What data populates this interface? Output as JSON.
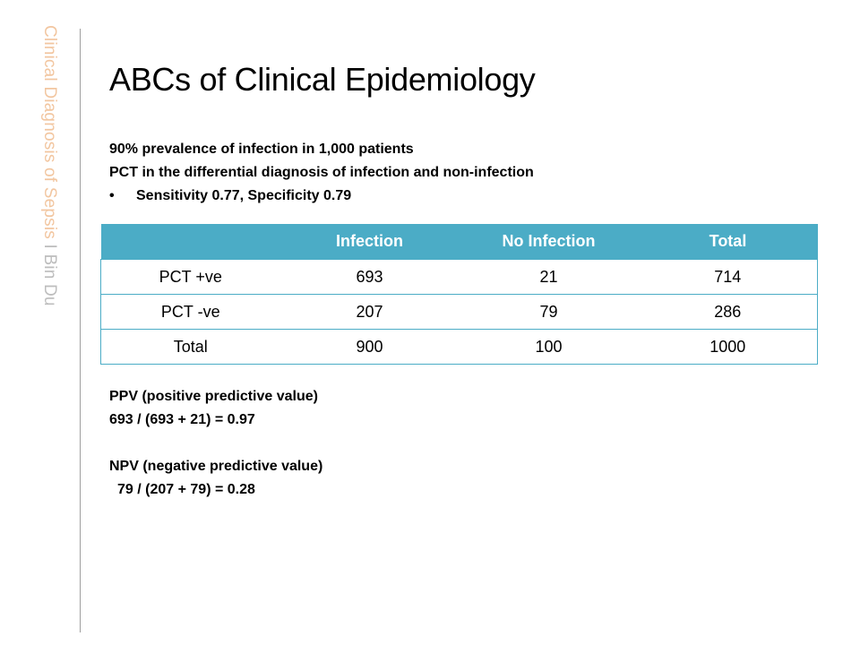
{
  "sidebar": {
    "title": "Clinical Diagnosis of Sepsis",
    "separator": "I",
    "author": "Bin Du"
  },
  "slide": {
    "title": "ABCs of Clinical Epidemiology",
    "intro": {
      "line1": "90% prevalence of infection in 1,000 patients",
      "line2": "PCT in the differential diagnosis of infection and non-infection",
      "bullet_symbol": "•",
      "bullet": "Sensitivity 0.77, Specificity 0.79"
    },
    "table": {
      "headers": [
        "",
        "Infection",
        "No Infection",
        "Total"
      ],
      "rows": [
        [
          "PCT +ve",
          "693",
          "21",
          "714"
        ],
        [
          "PCT -ve",
          "207",
          "79",
          "286"
        ],
        [
          "Total",
          "900",
          "100",
          "1000"
        ]
      ]
    },
    "ppv": {
      "label": "PPV (positive predictive value)",
      "formula": "693 / (693 + 21) = 0.97"
    },
    "npv": {
      "label": "NPV (negative predictive value)",
      "formula": "79 / (207 + 79) = 0.28"
    }
  },
  "colors": {
    "table_header": "#4bacc6",
    "sidebar_title": "#f2c6a0",
    "sidebar_author": "#bdbdbd"
  }
}
